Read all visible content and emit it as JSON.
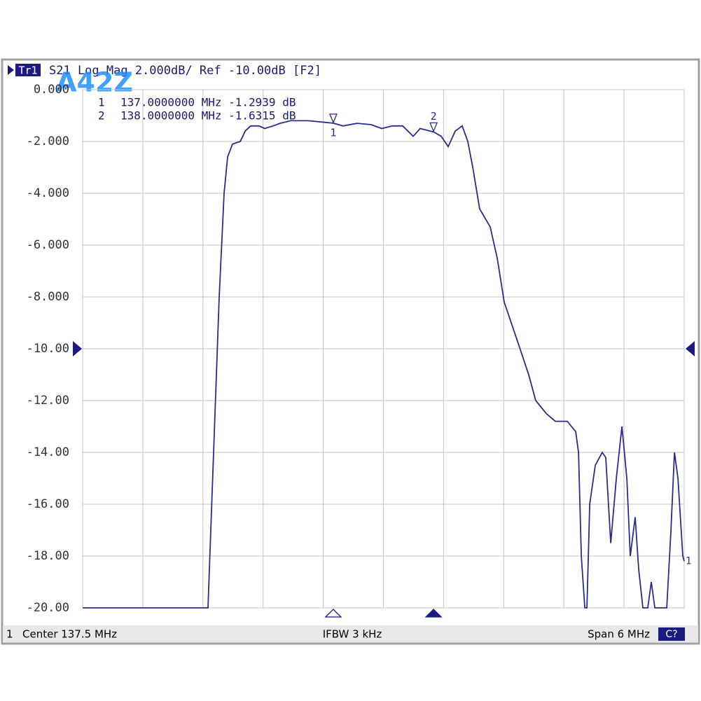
{
  "chart_data": {
    "type": "line",
    "trace_id": "Tr1",
    "title": "S21 Log Mag 2.000dB/ Ref -10.00dB [F2]",
    "color": "#2b2b8f",
    "x": [
      134.5,
      135.743,
      135.75,
      135.806,
      135.862,
      135.911,
      135.946,
      135.995,
      136.072,
      136.121,
      136.176,
      136.26,
      136.316,
      136.4,
      136.47,
      136.574,
      136.749,
      136.889,
      137.0,
      137.098,
      137.238,
      137.378,
      137.483,
      137.587,
      137.692,
      137.797,
      137.867,
      138.0,
      138.076,
      138.146,
      138.216,
      138.286,
      138.342,
      138.391,
      138.46,
      138.565,
      138.635,
      138.705,
      138.845,
      138.949,
      139.019,
      139.124,
      139.215,
      139.334,
      139.418,
      139.446,
      139.474,
      139.509,
      139.53,
      139.558,
      139.613,
      139.683,
      139.718,
      139.767,
      139.823,
      139.879,
      139.928,
      139.962,
      140.011,
      140.046,
      140.088,
      140.137,
      140.172,
      140.207,
      140.277,
      140.326,
      140.368,
      140.403,
      140.438,
      140.486,
      140.5
    ],
    "values": [
      -20,
      -20,
      -20,
      -14,
      -8,
      -4,
      -2.6,
      -2.1,
      -2.0,
      -1.6,
      -1.4,
      -1.4,
      -1.5,
      -1.4,
      -1.3,
      -1.2,
      -1.2,
      -1.25,
      -1.2939,
      -1.4,
      -1.3,
      -1.35,
      -1.5,
      -1.4,
      -1.4,
      -1.8,
      -1.5,
      -1.6315,
      -1.8,
      -2.2,
      -1.6,
      -1.4,
      -2.0,
      -3.0,
      -4.6,
      -5.3,
      -6.5,
      -8.2,
      -9.8,
      -11.0,
      -12.0,
      -12.5,
      -12.8,
      -12.8,
      -13.2,
      -14,
      -18,
      -20,
      -20,
      -16,
      -14.5,
      -14.0,
      -14.2,
      -17.5,
      -15,
      -13.0,
      -15,
      -18,
      -16.5,
      -18.5,
      -20,
      -20,
      -19,
      -20,
      -20,
      -20,
      -17,
      -14,
      -15,
      -18,
      -18.2
    ],
    "xlim": [
      134.5,
      140.5
    ],
    "xticks": [
      134.5,
      135.1,
      135.7,
      136.3,
      136.9,
      137.5,
      138.1,
      138.7,
      139.3,
      139.9,
      140.5
    ],
    "ylim": [
      -20,
      0
    ],
    "yticks": [
      {
        "value": 0,
        "label": "0.000"
      },
      {
        "value": -2,
        "label": "-2.000"
      },
      {
        "value": -4,
        "label": "-4.000"
      },
      {
        "value": -6,
        "label": "-6.000"
      },
      {
        "value": -8,
        "label": "-8.000"
      },
      {
        "value": -10,
        "label": "-10.00"
      },
      {
        "value": -12,
        "label": "-12.00"
      },
      {
        "value": -14,
        "label": "-14.00"
      },
      {
        "value": -16,
        "label": "-16.00"
      },
      {
        "value": -18,
        "label": "-18.00"
      },
      {
        "value": -20,
        "label": "-20.00"
      }
    ],
    "grid": true,
    "ref_level": -10,
    "trace_label": "1",
    "markers": [
      {
        "label": "1",
        "x": 137.0,
        "value": -1.2939,
        "readout": "137.0000000 MHz -1.2939 dB",
        "active": false
      },
      {
        "label": "2",
        "x": 138.0,
        "value": -1.6315,
        "readout": "138.0000000 MHz -1.6315 dB",
        "active": true
      }
    ],
    "footer": {
      "channel": "1",
      "center": "Center 137.5 MHz",
      "ifbw": "IFBW 3 kHz",
      "span": "Span 6 MHz",
      "status": "C?"
    },
    "watermark": "A42Z"
  }
}
